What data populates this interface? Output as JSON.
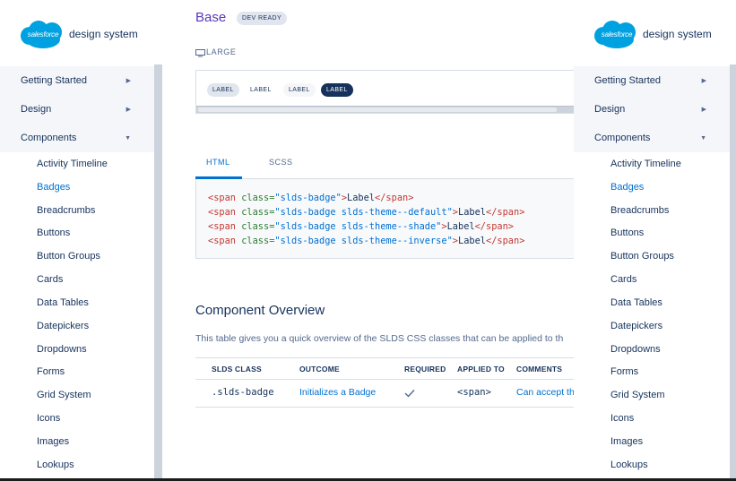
{
  "logo": {
    "cloud_word": "salesforce",
    "text": "design system"
  },
  "nav": {
    "top_items": [
      {
        "label": "Getting Started"
      },
      {
        "label": "Design"
      },
      {
        "label": "Components"
      }
    ],
    "sub_items": [
      "Activity Timeline",
      "Badges",
      "Breadcrumbs",
      "Buttons",
      "Button Groups",
      "Cards",
      "Data Tables",
      "Datepickers",
      "Dropdowns",
      "Forms",
      "Grid System",
      "Icons",
      "Images",
      "Lookups"
    ],
    "active_sub": "Badges"
  },
  "main": {
    "title": "Base",
    "status_badge": "DEV READY",
    "size_label": "LARGE",
    "preview_badges": [
      "LABEL",
      "LABEL",
      "LABEL",
      "LABEL"
    ],
    "tabs": [
      {
        "label": "HTML"
      },
      {
        "label": "SCSS"
      }
    ],
    "code": {
      "line1": {
        "open": "<span",
        "attr": " class=",
        "val": "\"slds-badge\"",
        "close": ">",
        "text": "Label",
        "end": "</span>"
      },
      "line2": {
        "open": "<span",
        "attr": " class=",
        "val": "\"slds-badge slds-theme--default\"",
        "close": ">",
        "text": "Label",
        "end": "</span>"
      },
      "line3": {
        "open": "<span",
        "attr": " class=",
        "val": "\"slds-badge slds-theme--shade\"",
        "close": ">",
        "text": "Label",
        "end": "</span>"
      },
      "line4": {
        "open": "<span",
        "attr": " class=",
        "val": "\"slds-badge slds-theme--inverse\"",
        "close": ">",
        "text": "Label",
        "end": "</span>"
      }
    },
    "overview": {
      "title": "Component Overview",
      "description": "This table gives you a quick overview of the SLDS CSS classes that can be applied to th",
      "headers": [
        "SLDS CLASS",
        "OUTCOME",
        "REQUIRED",
        "APPLIED TO",
        "COMMENTS"
      ],
      "row": {
        "class": ".slds-badge",
        "outcome": "Initializes a Badge",
        "applied_to": "<span>",
        "comments": "Can accept th"
      }
    }
  },
  "colors": {
    "accent": "#0070d2",
    "title": "#5a36b8",
    "text": "#16325c",
    "cloud": "#00a1e0"
  }
}
